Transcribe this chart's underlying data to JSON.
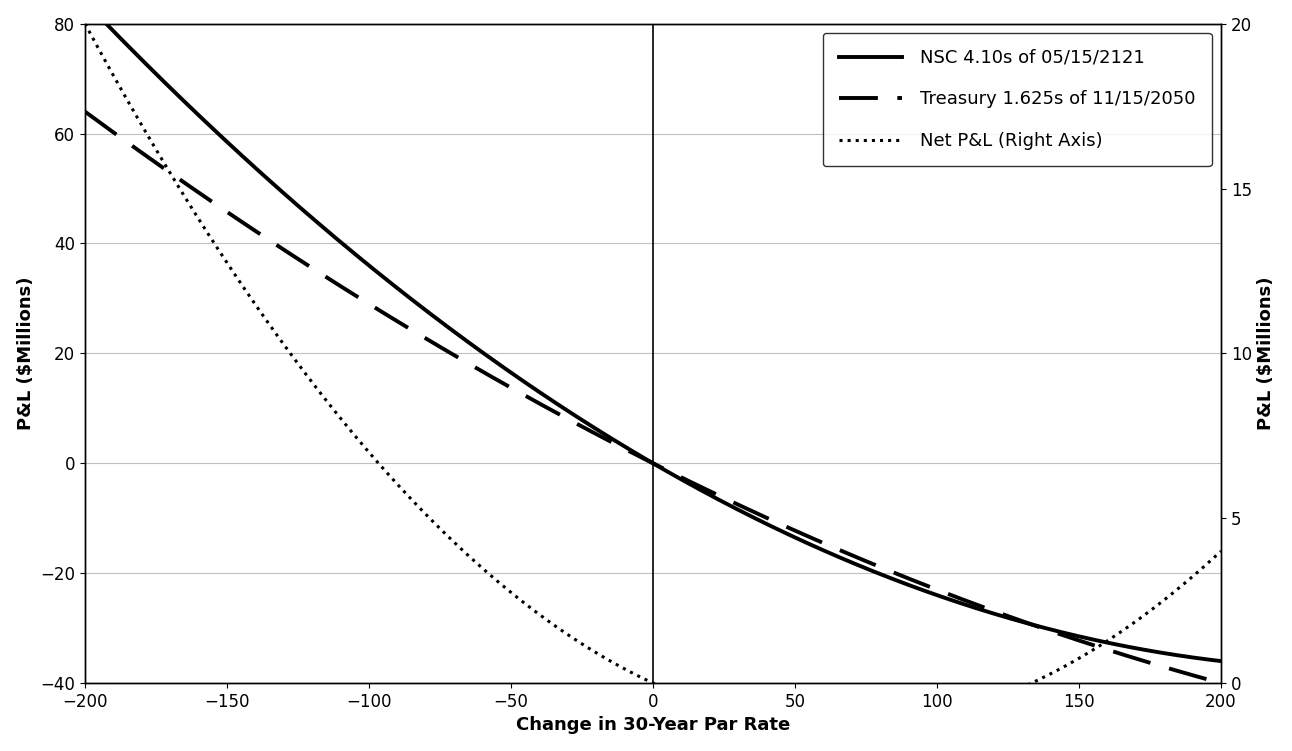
{
  "xlabel": "Change in 30-Year Par Rate",
  "ylabel_left": "P&L ($Millions)",
  "ylabel_right": "P&L ($Millions)",
  "xlim": [
    -200,
    200
  ],
  "ylim_left": [
    -40,
    80
  ],
  "ylim_right": [
    0,
    20
  ],
  "yticks_left": [
    -40,
    -20,
    0,
    20,
    40,
    60,
    80
  ],
  "yticks_right": [
    0,
    5,
    10,
    15,
    20
  ],
  "xticks": [
    -200,
    -150,
    -100,
    -50,
    0,
    50,
    100,
    150,
    200
  ],
  "background_color": "#ffffff",
  "grid_color": "#c0c0c0",
  "line_color": "#000000",
  "nsc_label": "NSC 4.10s of 05/15/2121",
  "treasury_label": "Treasury 1.625s of 11/15/2050",
  "net_label": "Net P&L (Right Axis)",
  "legend_fontsize": 13,
  "axis_label_fontsize": 13,
  "tick_fontsize": 12,
  "D_nsc": 0.3,
  "G_nsc": 0.0012,
  "D_tsy": 0.26,
  "G_tsy": 0.0006
}
